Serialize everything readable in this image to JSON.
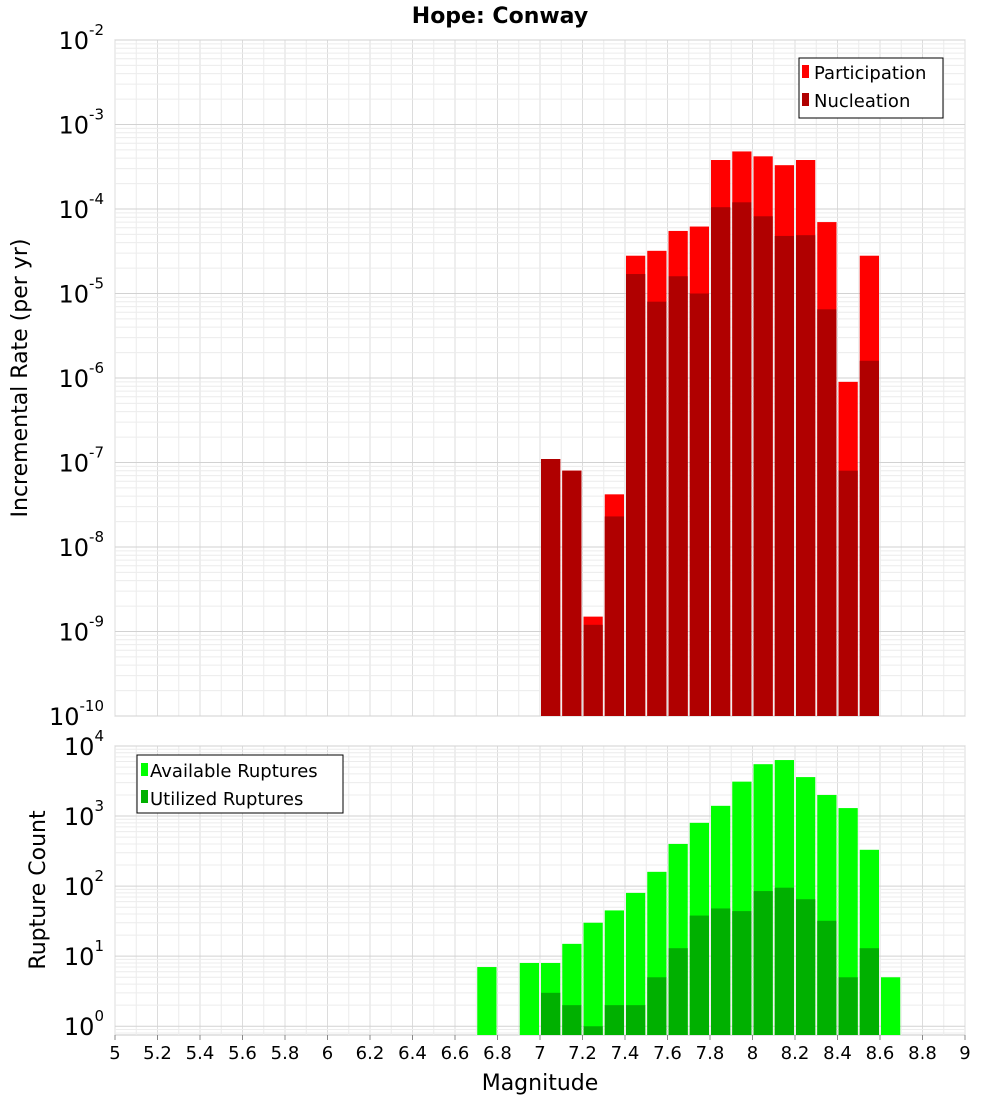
{
  "chart_data": [
    {
      "type": "bar",
      "title": "Hope: Conway",
      "xlabel": "",
      "ylabel": "Incremental Rate (per yr)",
      "yscale": "log",
      "xlim": [
        5,
        9
      ],
      "ylim": [
        1e-10,
        0.01
      ],
      "grid": true,
      "legend_position": "top-right",
      "y_tick_exponents": [
        "-10",
        "-9",
        "-8",
        "-7",
        "-6",
        "-5",
        "-4",
        "-3",
        "-2"
      ],
      "x": [
        7.05,
        7.15,
        7.25,
        7.35,
        7.45,
        7.55,
        7.65,
        7.75,
        7.85,
        7.95,
        8.05,
        8.15,
        8.25,
        8.35,
        8.45,
        8.55
      ],
      "series": [
        {
          "name": "Participation",
          "color": "#ff0000",
          "values": [
            1.1e-07,
            8e-08,
            1.5e-09,
            4.2e-08,
            2.8e-05,
            3.2e-05,
            5.5e-05,
            6.2e-05,
            0.00038,
            0.00048,
            0.00042,
            0.00033,
            0.00038,
            7e-05,
            9e-07,
            2.8e-05
          ]
        },
        {
          "name": "Nucleation",
          "color": "#b00000",
          "values": [
            1.1e-07,
            8e-08,
            1.2e-09,
            2.3e-08,
            1.7e-05,
            8e-06,
            1.6e-05,
            1e-05,
            0.000105,
            0.00012,
            8.2e-05,
            4.8e-05,
            4.9e-05,
            6.5e-06,
            8e-08,
            1.6e-06
          ]
        }
      ]
    },
    {
      "type": "bar",
      "title": "",
      "xlabel": "Magnitude",
      "ylabel": "Rupture Count",
      "yscale": "log",
      "xlim": [
        5,
        9
      ],
      "ylim": [
        0.75,
        10000
      ],
      "grid": true,
      "legend_position": "top-left",
      "y_tick_exponents": [
        "0",
        "1",
        "2",
        "3",
        "4"
      ],
      "x_ticks": [
        "5",
        "5.2",
        "5.4",
        "5.6",
        "5.8",
        "6",
        "6.2",
        "6.4",
        "6.6",
        "6.8",
        "7",
        "7.2",
        "7.4",
        "7.6",
        "7.8",
        "8",
        "8.2",
        "8.4",
        "8.6",
        "8.8",
        "9"
      ],
      "x": [
        6.75,
        6.95,
        7.05,
        7.15,
        7.25,
        7.35,
        7.45,
        7.55,
        7.65,
        7.75,
        7.85,
        7.95,
        8.05,
        8.15,
        8.25,
        8.35,
        8.45,
        8.55,
        8.65
      ],
      "series": [
        {
          "name": "Available Ruptures",
          "color": "#00ff00",
          "values": [
            7,
            8,
            8,
            15,
            30,
            45,
            80,
            160,
            400,
            800,
            1400,
            3100,
            5500,
            6300,
            3600,
            2000,
            1300,
            330,
            5
          ]
        },
        {
          "name": "Utilized Ruptures",
          "color": "#00b000",
          "values": [
            0,
            0,
            3,
            2,
            1,
            2,
            2,
            5,
            13,
            38,
            48,
            44,
            85,
            95,
            65,
            32,
            5,
            13,
            0
          ]
        }
      ]
    }
  ]
}
